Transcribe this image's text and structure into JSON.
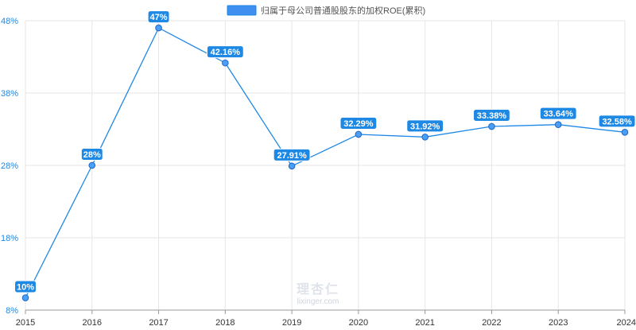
{
  "chart_data": {
    "type": "line",
    "legend": {
      "label": "归属于母公司普通股股东的加权ROE(累积)",
      "color": "#3f8ff0",
      "position": "top-center"
    },
    "categories": [
      "2015",
      "2016",
      "2017",
      "2018",
      "2019",
      "2020",
      "2021",
      "2022",
      "2023",
      "2024"
    ],
    "series": [
      {
        "name": "归属于母公司普通股股东的加权ROE(累积)",
        "values": [
          9.7,
          28.0,
          47.0,
          42.16,
          27.91,
          32.29,
          31.92,
          33.38,
          33.64,
          32.58
        ],
        "labels": [
          "10%",
          "28%",
          "47%",
          "42.16%",
          "27.91%",
          "32.29%",
          "31.92%",
          "33.38%",
          "33.64%",
          "32.58%"
        ]
      }
    ],
    "y_ticks": [
      "8%",
      "18%",
      "28%",
      "38%",
      "48%"
    ],
    "y_tick_values": [
      8,
      18,
      28,
      38,
      48
    ],
    "ylim": [
      8,
      48
    ],
    "grid": true,
    "line_color": "#1e88e5",
    "label_bg_color": "#1e88e5"
  },
  "watermark": {
    "cn": "理杏仁",
    "en": "lixinger.com"
  }
}
